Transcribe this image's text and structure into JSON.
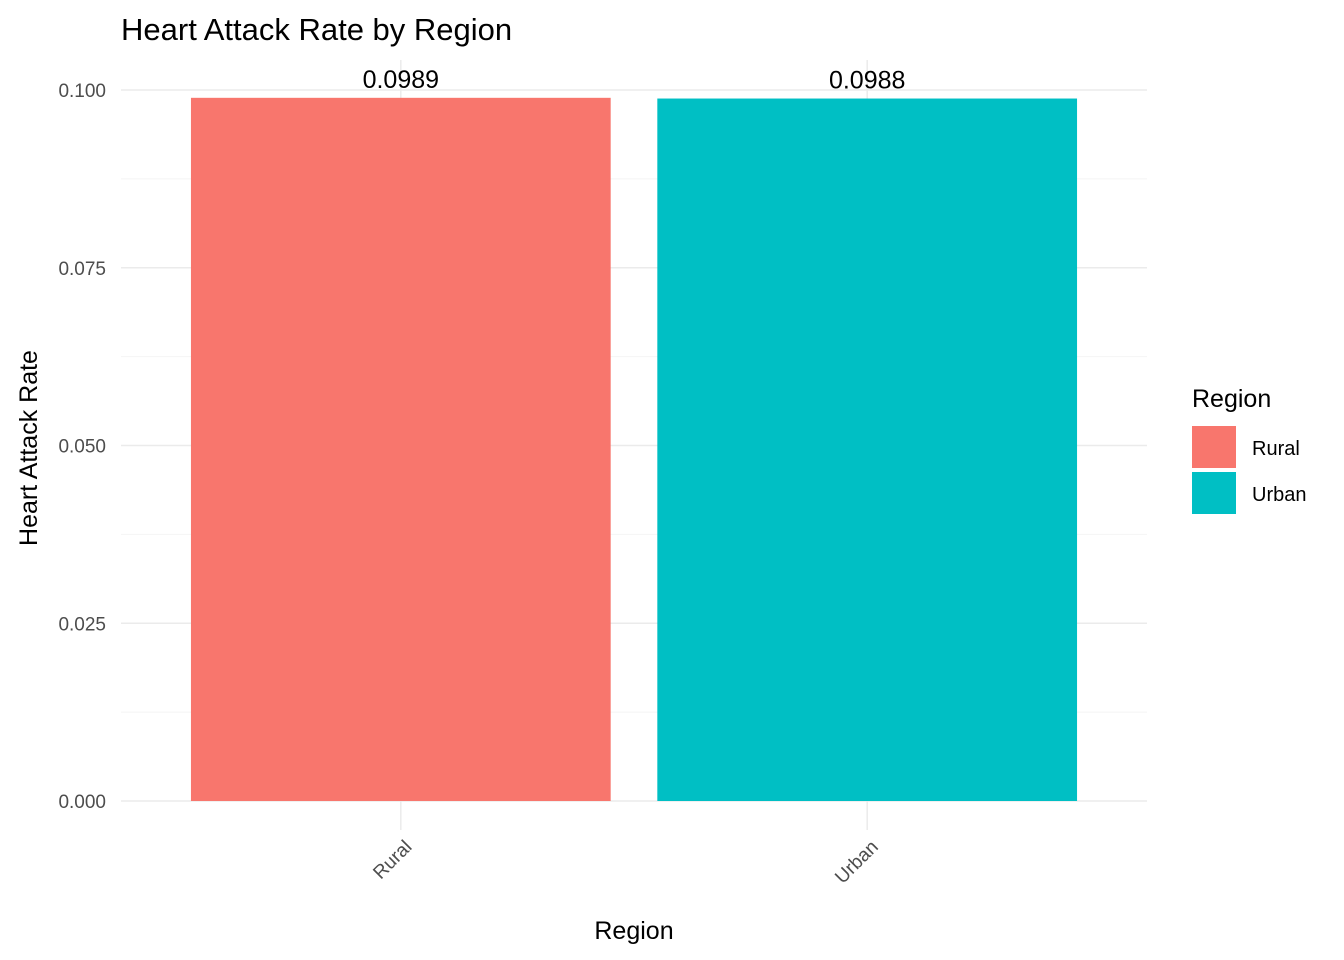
{
  "chart_data": {
    "type": "bar",
    "title": "Heart Attack Rate by Region",
    "xlabel": "Region",
    "ylabel": "Heart Attack Rate",
    "categories": [
      "Rural",
      "Urban"
    ],
    "values": [
      0.0989,
      0.0988
    ],
    "value_labels": [
      "0.0989",
      "0.0988"
    ],
    "colors": [
      "#F8766D",
      "#00BFC4"
    ],
    "ylim": [
      0,
      0.1
    ],
    "yticks": [
      0.0,
      0.025,
      0.05,
      0.075,
      0.1
    ],
    "ytick_labels": [
      "0.000",
      "0.025",
      "0.050",
      "0.075",
      "0.100"
    ],
    "grid": true,
    "legend": {
      "title": "Region",
      "placement": "right",
      "entries": [
        {
          "label": "Rural",
          "color": "#F8766D"
        },
        {
          "label": "Urban",
          "color": "#00BFC4"
        }
      ]
    }
  }
}
